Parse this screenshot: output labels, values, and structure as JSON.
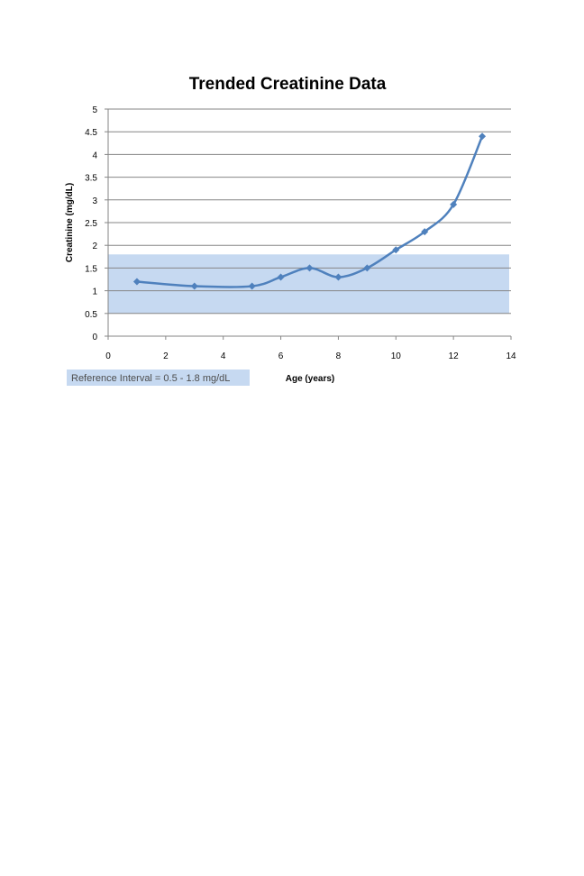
{
  "chart_data": {
    "type": "line",
    "title": "Trended Creatinine Data",
    "xlabel": "Age (years)",
    "ylabel": "Creatinine (mg/dL)",
    "xlim": [
      0,
      14
    ],
    "ylim": [
      0,
      5
    ],
    "x_ticks": [
      "0",
      "2",
      "4",
      "6",
      "8",
      "10",
      "12",
      "14"
    ],
    "y_ticks": [
      "0",
      "0.5",
      "1",
      "1.5",
      "2",
      "2.5",
      "3",
      "3.5",
      "4",
      "4.5",
      "5"
    ],
    "grid": true,
    "smoothed": true,
    "marker": "diamond",
    "series": [
      {
        "x": [
          1,
          3,
          5,
          6,
          7,
          8,
          9,
          10,
          11,
          12,
          13
        ],
        "y": [
          1.2,
          1.1,
          1.1,
          1.3,
          1.5,
          1.3,
          1.5,
          1.9,
          2.3,
          2.9,
          4.4
        ]
      }
    ],
    "reference_band": {
      "low": 0.5,
      "high": 1.8,
      "label": "Reference Interval = 0.5 - 1.8 mg/dL"
    },
    "colors": {
      "line": "#4f81bd",
      "band": "#c6d9f1",
      "grid": "#868686",
      "axis": "#868686"
    }
  }
}
